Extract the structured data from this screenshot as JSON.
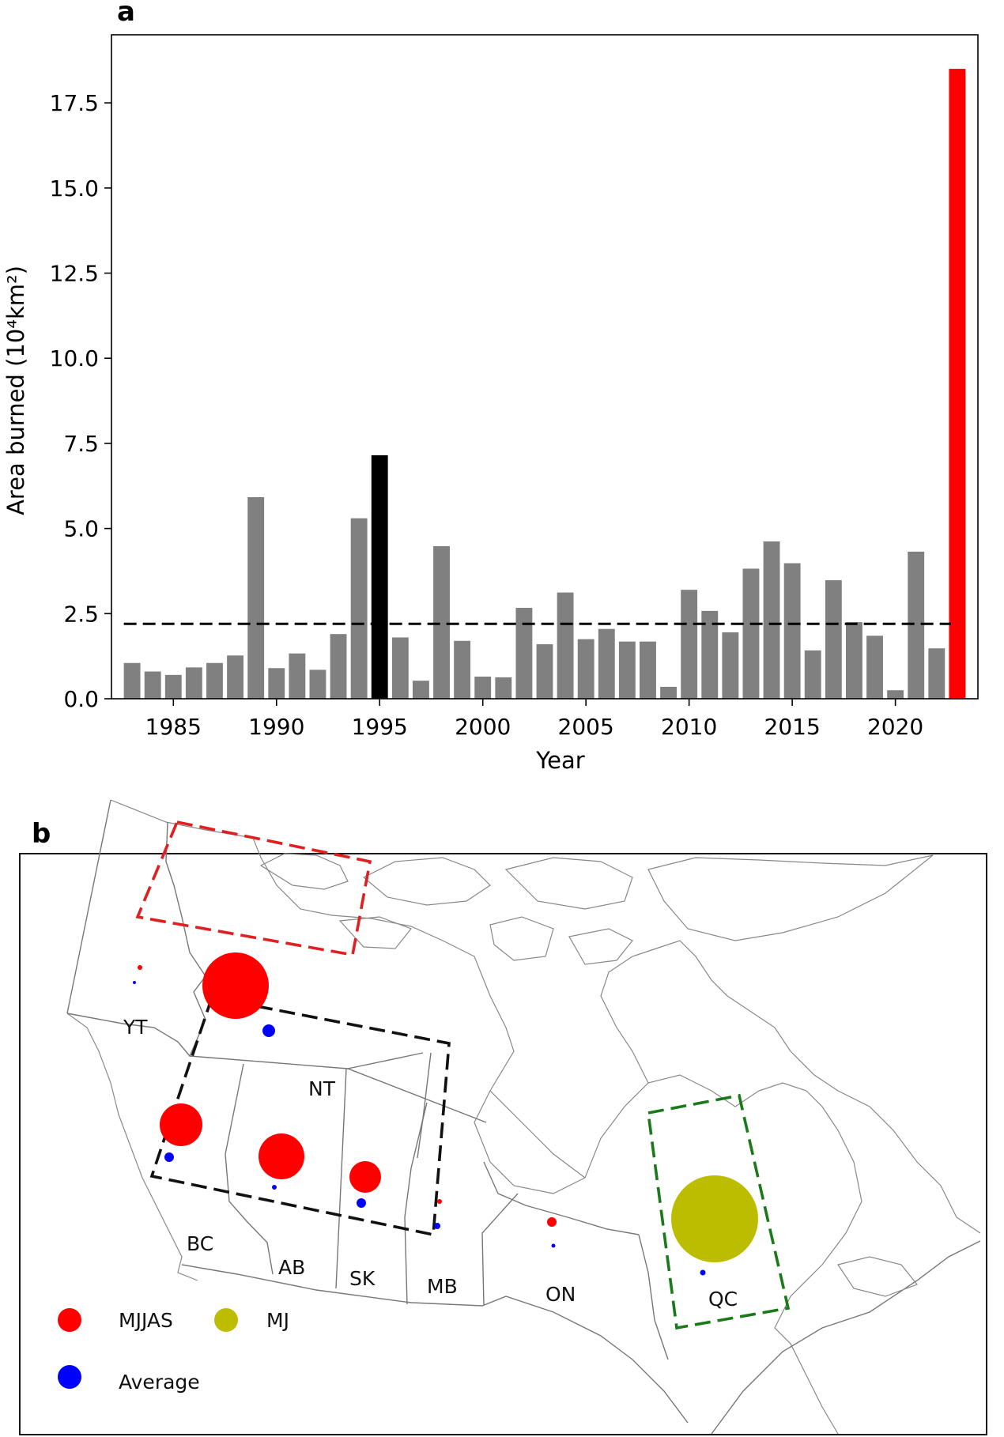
{
  "panel_a": {
    "letter": "a",
    "chart_data": {
      "type": "bar",
      "title": "",
      "xlabel": "Year",
      "ylabel": "Area burned (10⁴km²)",
      "xlim": [
        1982,
        2024
      ],
      "ylim": [
        0,
        19.5
      ],
      "x_ticks": [
        1985,
        1990,
        1995,
        2000,
        2005,
        2010,
        2015,
        2020
      ],
      "y_ticks": [
        0.0,
        2.5,
        5.0,
        7.5,
        10.0,
        12.5,
        15.0,
        17.5
      ],
      "y_tick_labels": [
        "0.0",
        "2.5",
        "5.0",
        "7.5",
        "10.0",
        "12.5",
        "15.0",
        "17.5"
      ],
      "mean_line": 2.2,
      "colors": {
        "default": "#808080",
        "highlight_1995": "#000000",
        "highlight_2023": "#ff0000",
        "mean_line": "#000000"
      },
      "x": [
        1983,
        1984,
        1985,
        1986,
        1987,
        1988,
        1989,
        1990,
        1991,
        1992,
        1993,
        1994,
        1995,
        1996,
        1997,
        1998,
        1999,
        2000,
        2001,
        2002,
        2003,
        2004,
        2005,
        2006,
        2007,
        2008,
        2009,
        2010,
        2011,
        2012,
        2013,
        2014,
        2015,
        2016,
        2017,
        2018,
        2019,
        2020,
        2021,
        2022,
        2023
      ],
      "values": [
        1.05,
        0.8,
        0.7,
        0.92,
        1.05,
        1.27,
        5.92,
        0.9,
        1.33,
        0.85,
        1.9,
        5.3,
        7.15,
        1.8,
        0.53,
        4.48,
        1.7,
        0.65,
        0.63,
        2.67,
        1.6,
        3.12,
        1.75,
        2.05,
        1.68,
        1.68,
        0.35,
        3.2,
        2.58,
        1.95,
        3.82,
        4.62,
        3.98,
        1.42,
        3.48,
        2.25,
        1.85,
        0.25,
        4.32,
        1.48,
        18.5
      ]
    }
  },
  "panel_b": {
    "letter": "b",
    "provinces": [
      "YT",
      "NT",
      "BC",
      "AB",
      "SK",
      "MB",
      "ON",
      "QC"
    ],
    "legend": [
      {
        "label": "MJJAS",
        "color": "#ff0000"
      },
      {
        "label": "MJ",
        "color": "#bdbd00"
      },
      {
        "label": "Average",
        "color": "#0000ff"
      }
    ],
    "colors": {
      "mjjas": "#ff0000",
      "mj": "#bdbd00",
      "average": "#0000ff",
      "box_west": "#e02020",
      "box_central": "#111111",
      "box_east": "#1a7a1a"
    }
  }
}
